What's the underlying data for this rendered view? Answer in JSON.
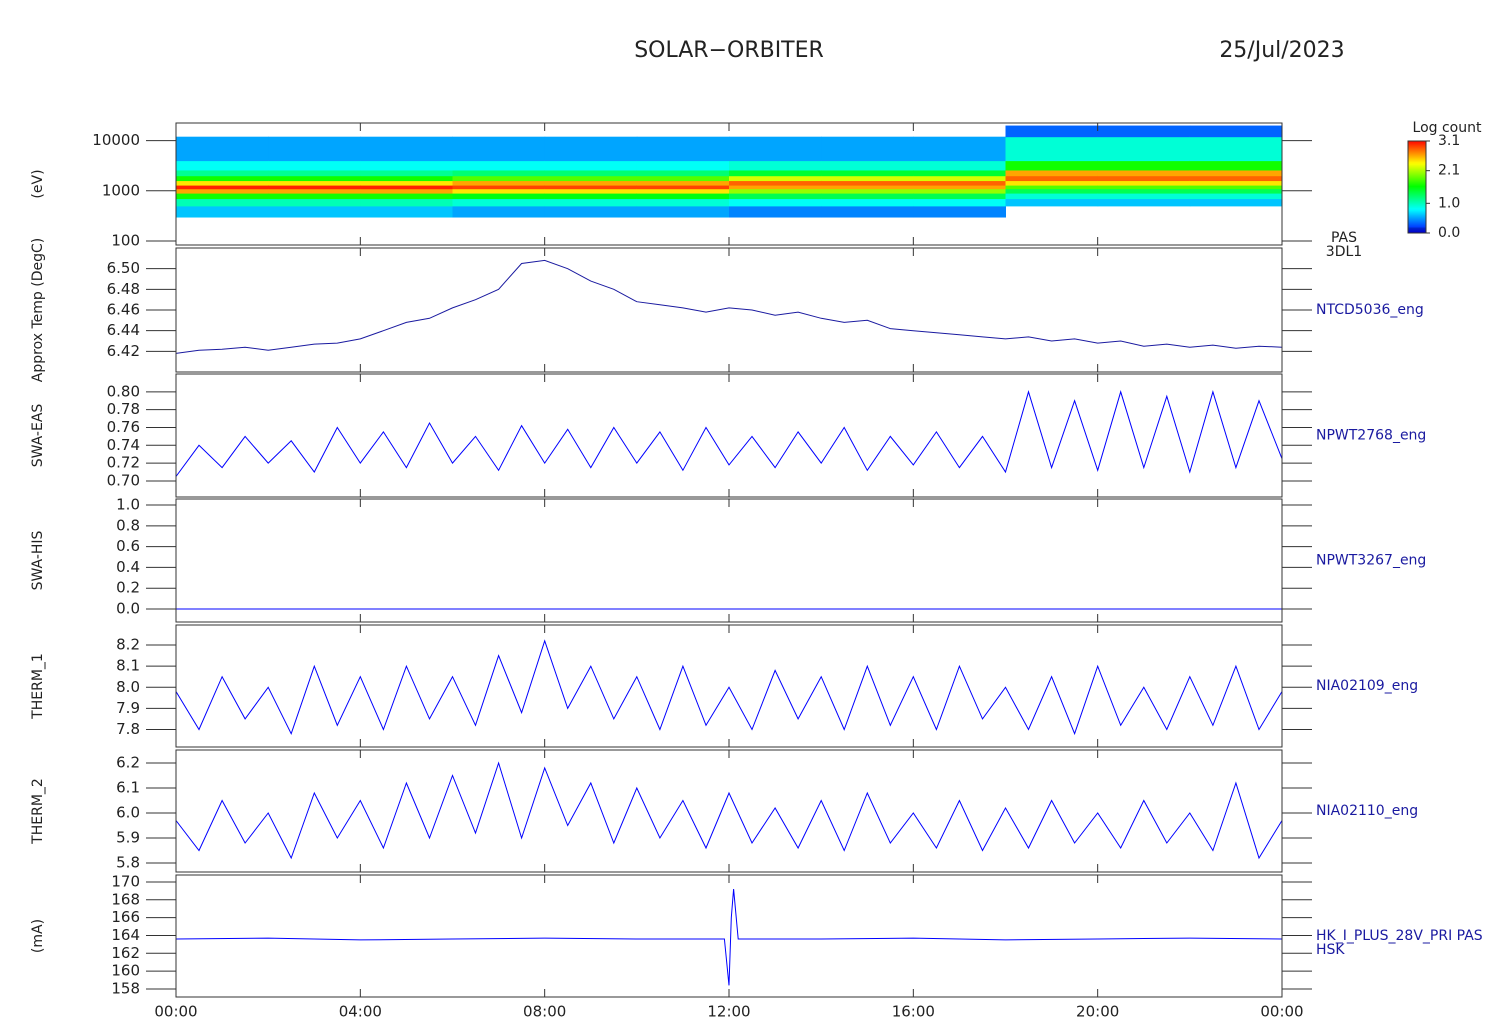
{
  "header": {
    "title": "SOLAR−ORBITER",
    "date": "25/Jul/2023"
  },
  "chart_data": [
    {
      "type": "heatmap",
      "ylabel": "(eV)",
      "log": true,
      "side_labels": [
        "PAS",
        "3DL1"
      ],
      "x_bins": [
        0,
        2,
        4,
        6,
        8,
        10,
        12,
        14,
        16,
        18,
        20,
        22,
        24
      ],
      "y_bins": [
        300,
        500,
        700,
        900,
        1100,
        1300,
        1600,
        2000,
        2600,
        4000,
        12000,
        20000
      ],
      "z": [
        [
          0.6,
          1.0,
          1.6,
          2.6,
          3.0,
          2.4,
          1.6,
          1.1,
          0.8,
          0.5,
          null
        ],
        [
          0.6,
          1.0,
          1.6,
          2.6,
          3.0,
          2.4,
          1.6,
          1.1,
          0.8,
          0.5,
          null
        ],
        [
          0.6,
          1.0,
          1.6,
          2.6,
          3.0,
          2.4,
          1.6,
          1.1,
          0.8,
          0.5,
          null
        ],
        [
          0.5,
          0.9,
          1.5,
          2.4,
          2.9,
          2.6,
          1.8,
          1.2,
          0.8,
          0.5,
          null
        ],
        [
          0.5,
          0.9,
          1.5,
          2.4,
          2.9,
          2.6,
          1.8,
          1.2,
          0.8,
          0.5,
          null
        ],
        [
          0.5,
          0.9,
          1.5,
          2.4,
          2.9,
          2.6,
          1.8,
          1.2,
          0.8,
          0.5,
          null
        ],
        [
          0.4,
          0.8,
          1.3,
          2.0,
          2.6,
          2.8,
          2.2,
          1.4,
          0.9,
          0.5,
          null
        ],
        [
          0.4,
          0.8,
          1.3,
          2.0,
          2.6,
          2.8,
          2.2,
          1.4,
          0.9,
          0.5,
          null
        ],
        [
          0.4,
          0.8,
          1.3,
          2.0,
          2.6,
          2.8,
          2.2,
          1.4,
          0.9,
          0.5,
          null
        ],
        [
          null,
          0.6,
          0.9,
          1.3,
          1.8,
          2.4,
          2.8,
          2.6,
          1.6,
          0.9,
          0.3
        ],
        [
          null,
          0.6,
          0.9,
          1.3,
          1.8,
          2.4,
          2.8,
          2.6,
          1.6,
          0.9,
          0.3
        ],
        [
          null,
          0.6,
          0.9,
          1.3,
          1.8,
          2.4,
          2.8,
          2.6,
          1.6,
          0.9,
          0.3
        ]
      ],
      "xlim": [
        0,
        24
      ],
      "ylim": [
        83,
        22500
      ],
      "yticks": [
        100,
        1000,
        10000
      ],
      "colorbar_title": "Log count",
      "zlim": [
        0,
        3.1
      ],
      "zticks": [
        {
          "value": 0,
          "label": "0.0"
        },
        {
          "value": 1,
          "label": "1.0"
        },
        2.1,
        3.1
      ]
    },
    {
      "type": "line",
      "ylabel": "Approx Temp (DegC)",
      "x": [
        0,
        0.5,
        1,
        1.5,
        2,
        2.5,
        3,
        3.5,
        4,
        4.5,
        5,
        5.5,
        6,
        6.5,
        7,
        7.5,
        8,
        8.5,
        9,
        9.5,
        10,
        10.5,
        11,
        11.5,
        12,
        12.5,
        13,
        13.5,
        14,
        14.5,
        15,
        15.5,
        16,
        16.5,
        17,
        17.5,
        18,
        18.5,
        19,
        19.5,
        20,
        20.5,
        21,
        21.5,
        22,
        22.5,
        23,
        23.5,
        24
      ],
      "series": [
        {
          "name": "NTCD5036_eng",
          "color": "#1a1aa0",
          "values": [
            6.418,
            6.421,
            6.422,
            6.424,
            6.421,
            6.424,
            6.427,
            6.428,
            6.432,
            6.44,
            6.448,
            6.452,
            6.462,
            6.47,
            6.48,
            6.505,
            6.508,
            6.5,
            6.488,
            6.48,
            6.468,
            6.465,
            6.462,
            6.458,
            6.462,
            6.46,
            6.455,
            6.458,
            6.452,
            6.448,
            6.45,
            6.442,
            6.44,
            6.438,
            6.436,
            6.434,
            6.432,
            6.434,
            6.43,
            6.432,
            6.428,
            6.43,
            6.425,
            6.427,
            6.424,
            6.426,
            6.423,
            6.425,
            6.424
          ]
        }
      ],
      "xlim": [
        0,
        24
      ],
      "ylim": [
        6.4,
        6.52
      ],
      "yticks": [
        6.42,
        6.44,
        6.46,
        6.48,
        {
          "value": 6.5,
          "label": "6.50"
        }
      ]
    },
    {
      "type": "line",
      "ylabel": "SWA-EAS",
      "x": [
        0,
        0.5,
        1,
        1.5,
        2,
        2.5,
        3,
        3.5,
        4,
        4.5,
        5,
        5.5,
        6,
        6.5,
        7,
        7.5,
        8,
        8.5,
        9,
        9.5,
        10,
        10.5,
        11,
        11.5,
        12,
        12.5,
        13,
        13.5,
        14,
        14.5,
        15,
        15.5,
        16,
        16.5,
        17,
        17.5,
        18,
        18.5,
        19,
        19.5,
        20,
        20.5,
        21,
        21.5,
        22,
        22.5,
        23,
        23.5,
        24
      ],
      "series": [
        {
          "name": "NPWT2768_eng",
          "color": "#0000ff",
          "values": [
            0.705,
            0.74,
            0.715,
            0.75,
            0.72,
            0.745,
            0.71,
            0.76,
            0.72,
            0.755,
            0.715,
            0.765,
            0.72,
            0.75,
            0.712,
            0.762,
            0.72,
            0.758,
            0.715,
            0.76,
            0.72,
            0.755,
            0.712,
            0.76,
            0.718,
            0.75,
            0.715,
            0.755,
            0.72,
            0.76,
            0.712,
            0.75,
            0.718,
            0.755,
            0.715,
            0.75,
            0.71,
            0.8,
            0.715,
            0.79,
            0.712,
            0.8,
            0.715,
            0.795,
            0.71,
            0.8,
            0.715,
            0.79,
            0.725
          ]
        }
      ],
      "xlim": [
        0,
        24
      ],
      "ylim": [
        0.682,
        0.82
      ],
      "yticks": [
        {
          "value": 0.7,
          "label": "0.70"
        },
        0.72,
        0.74,
        0.76,
        0.78,
        {
          "value": 0.8,
          "label": "0.80"
        }
      ]
    },
    {
      "type": "line",
      "ylabel": "SWA-HIS",
      "x": [
        0,
        24
      ],
      "series": [
        {
          "name": "NPWT3267_eng",
          "color": "#0000ff",
          "values": [
            0,
            0
          ]
        }
      ],
      "xlim": [
        0,
        24
      ],
      "ylim": [
        -0.125,
        1.058
      ],
      "yticks": [
        {
          "value": 0,
          "label": "0.0"
        },
        0.2,
        0.4,
        0.6,
        0.8,
        {
          "value": 1,
          "label": "1.0"
        }
      ]
    },
    {
      "type": "line",
      "ylabel": "THERM_1",
      "x": [
        0,
        0.5,
        1,
        1.5,
        2,
        2.5,
        3,
        3.5,
        4,
        4.5,
        5,
        5.5,
        6,
        6.5,
        7,
        7.5,
        8,
        8.5,
        9,
        9.5,
        10,
        10.5,
        11,
        11.5,
        12,
        12.5,
        13,
        13.5,
        14,
        14.5,
        15,
        15.5,
        16,
        16.5,
        17,
        17.5,
        18,
        18.5,
        19,
        19.5,
        20,
        20.5,
        21,
        21.5,
        22,
        22.5,
        23,
        23.5,
        24
      ],
      "series": [
        {
          "name": "NIA02109_eng",
          "color": "#0000ff",
          "values": [
            7.98,
            7.8,
            8.05,
            7.85,
            8.0,
            7.78,
            8.1,
            7.82,
            8.05,
            7.8,
            8.1,
            7.85,
            8.05,
            7.82,
            8.15,
            7.88,
            8.22,
            7.9,
            8.1,
            7.85,
            8.05,
            7.8,
            8.1,
            7.82,
            8.0,
            7.8,
            8.08,
            7.85,
            8.05,
            7.8,
            8.1,
            7.82,
            8.05,
            7.8,
            8.1,
            7.85,
            8.0,
            7.8,
            8.05,
            7.78,
            8.1,
            7.82,
            8.0,
            7.8,
            8.05,
            7.82,
            8.1,
            7.8,
            7.98
          ]
        }
      ],
      "xlim": [
        0,
        24
      ],
      "ylim": [
        7.717,
        8.295
      ],
      "yticks": [
        7.8,
        7.9,
        {
          "value": 8,
          "label": "8.0"
        },
        8.1,
        8.2
      ]
    },
    {
      "type": "line",
      "ylabel": "THERM_2",
      "x": [
        0,
        0.5,
        1,
        1.5,
        2,
        2.5,
        3,
        3.5,
        4,
        4.5,
        5,
        5.5,
        6,
        6.5,
        7,
        7.5,
        8,
        8.5,
        9,
        9.5,
        10,
        10.5,
        11,
        11.5,
        12,
        12.5,
        13,
        13.5,
        14,
        14.5,
        15,
        15.5,
        16,
        16.5,
        17,
        17.5,
        18,
        18.5,
        19,
        19.5,
        20,
        20.5,
        21,
        21.5,
        22,
        22.5,
        23,
        23.5,
        24
      ],
      "series": [
        {
          "name": "NIA02110_eng",
          "color": "#0000ff",
          "values": [
            5.97,
            5.85,
            6.05,
            5.88,
            6.0,
            5.82,
            6.08,
            5.9,
            6.05,
            5.86,
            6.12,
            5.9,
            6.15,
            5.92,
            6.2,
            5.9,
            6.18,
            5.95,
            6.12,
            5.88,
            6.1,
            5.9,
            6.05,
            5.86,
            6.08,
            5.88,
            6.02,
            5.86,
            6.05,
            5.85,
            6.08,
            5.88,
            6.0,
            5.86,
            6.05,
            5.85,
            6.02,
            5.86,
            6.05,
            5.88,
            6.0,
            5.86,
            6.05,
            5.88,
            6.0,
            5.85,
            6.12,
            5.82,
            5.97
          ]
        }
      ],
      "xlim": [
        0,
        24
      ],
      "ylim": [
        5.764,
        6.252
      ],
      "yticks": [
        5.8,
        5.9,
        {
          "value": 6,
          "label": "6.0"
        },
        6.1,
        6.2
      ]
    },
    {
      "type": "line",
      "ylabel": "(mA)",
      "side_labels": [
        "HSK"
      ],
      "x": [
        0,
        2,
        4,
        6,
        8,
        10,
        11.9,
        12.0,
        12.05,
        12.1,
        12.2,
        14,
        16,
        18,
        20,
        22,
        24
      ],
      "series": [
        {
          "name": "HK_I_PLUS_28V_PRI PAS",
          "color": "#0000ff",
          "values": [
            163.6,
            163.7,
            163.5,
            163.6,
            163.7,
            163.6,
            163.6,
            158.4,
            166,
            169.2,
            163.6,
            163.6,
            163.7,
            163.5,
            163.6,
            163.7,
            163.6
          ]
        }
      ],
      "xlim": [
        0,
        24
      ],
      "ylim": [
        157.1,
        170.78
      ],
      "yticks": [
        158,
        160,
        162,
        164,
        166,
        168,
        170
      ],
      "xticks": [
        {
          "value": 0,
          "label": "00:00"
        },
        {
          "value": 4,
          "label": "04:00"
        },
        {
          "value": 8,
          "label": "08:00"
        },
        {
          "value": 12,
          "label": "12:00"
        },
        {
          "value": 16,
          "label": "16:00"
        },
        {
          "value": 20,
          "label": "20:00"
        },
        {
          "value": 24,
          "label": "00:00"
        }
      ]
    }
  ]
}
